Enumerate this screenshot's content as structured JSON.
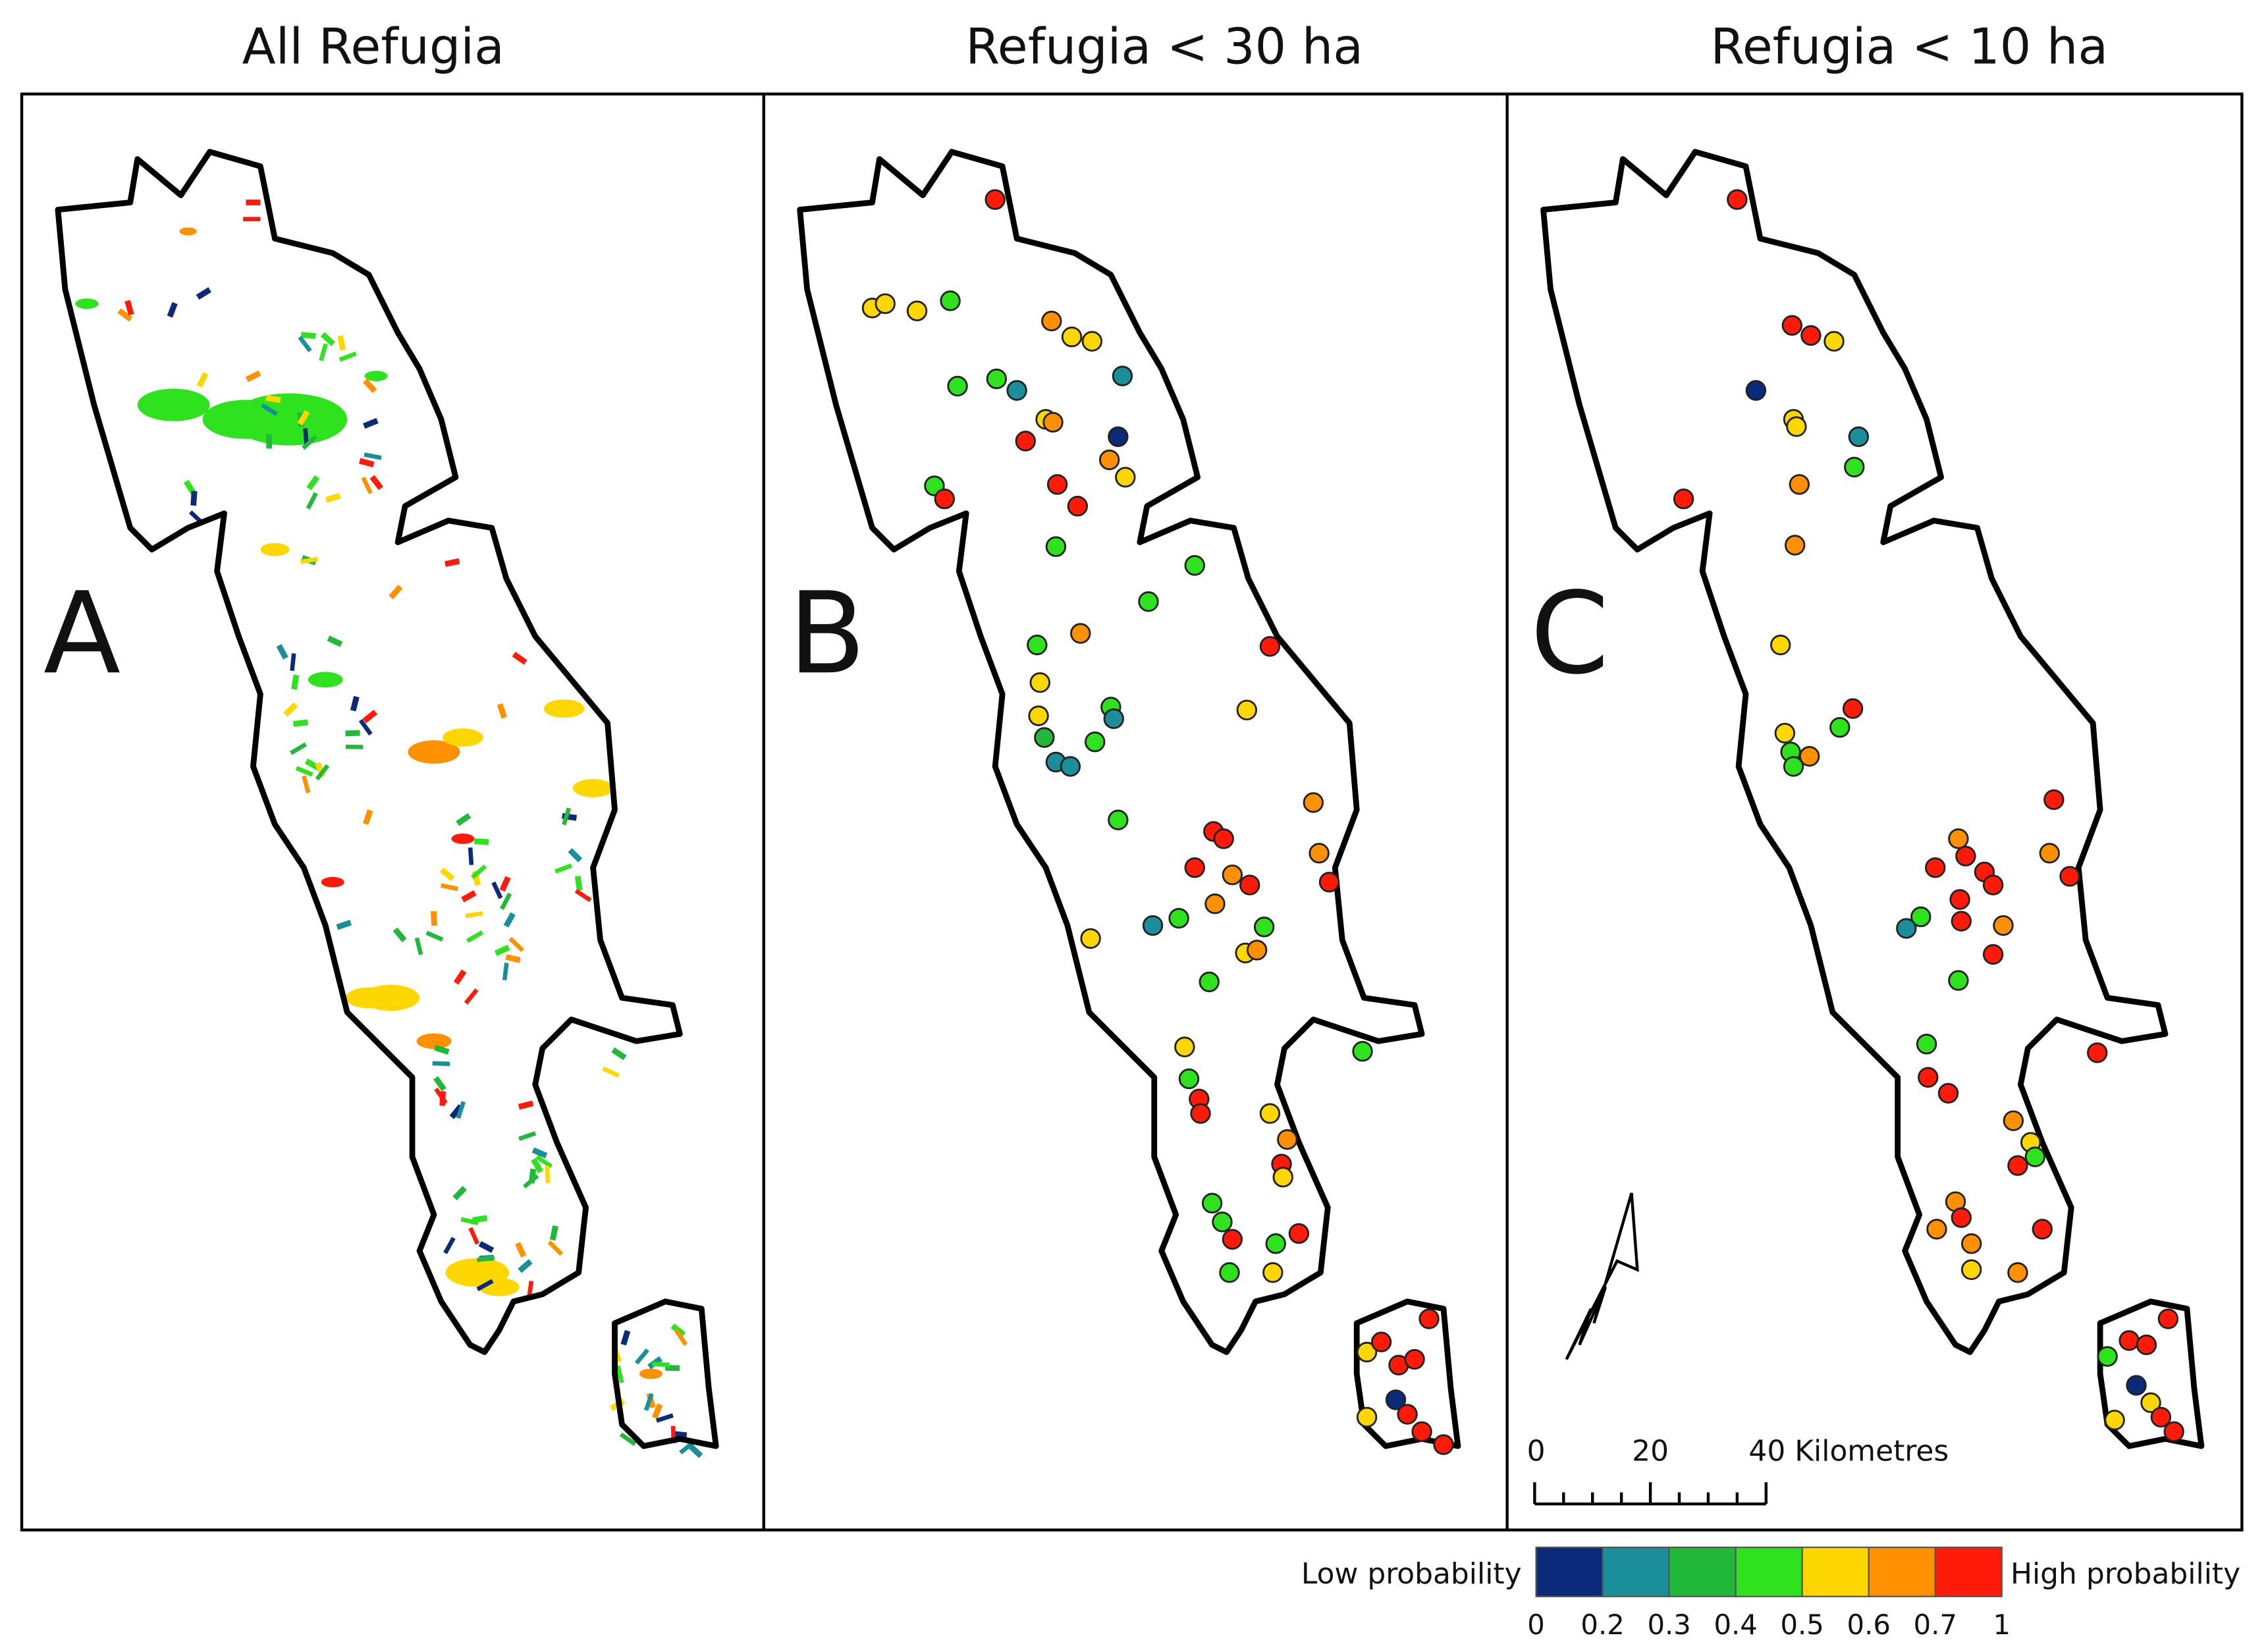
{
  "panels": [
    {
      "title": "All Refugia",
      "letter": "A"
    },
    {
      "title": "Refugia < 30 ha",
      "letter": "B"
    },
    {
      "title": "Refugia < 10 ha",
      "letter": "C"
    }
  ],
  "scale_bar": {
    "labels": [
      "0",
      "20",
      "40 Kilometres"
    ]
  },
  "legend": {
    "low_label": "Low probability",
    "high_label": "High probability",
    "breaks": [
      0,
      0.2,
      0.3,
      0.4,
      0.5,
      0.6,
      0.7,
      1
    ],
    "colors": [
      "#0b2a7a",
      "#1a8f9a",
      "#22b83a",
      "#2ee31d",
      "#ffd700",
      "#ff9000",
      "#ff1a0a"
    ]
  }
}
